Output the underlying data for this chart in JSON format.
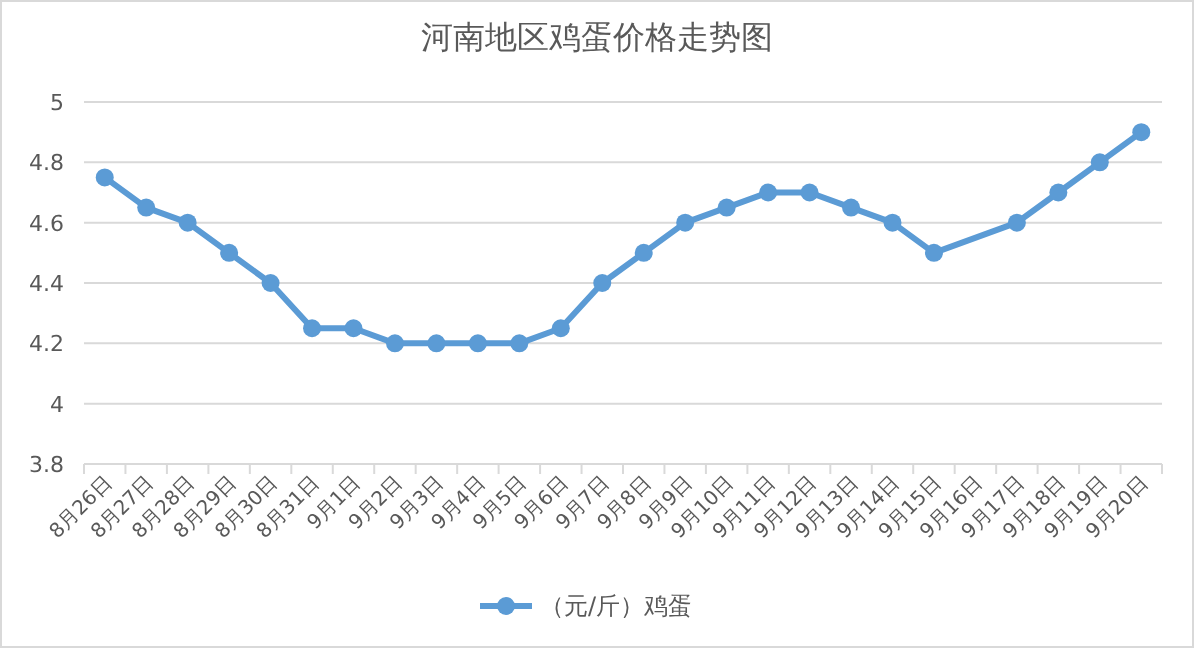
{
  "chart_data": {
    "type": "line",
    "title": "河南地区鸡蛋价格走势图",
    "categories": [
      "8月26日",
      "8月27日",
      "8月28日",
      "8月29日",
      "8月30日",
      "8月31日",
      "9月1日",
      "9月2日",
      "9月3日",
      "9月4日",
      "9月5日",
      "9月6日",
      "9月7日",
      "9月8日",
      "9月9日",
      "9月10日",
      "9月11日",
      "9月12日",
      "9月13日",
      "9月14日",
      "9月15日",
      "9月16日",
      "9月17日",
      "9月18日",
      "9月19日",
      "9月20日"
    ],
    "series": [
      {
        "name": "（元/斤）鸡蛋",
        "color": "#5b9bd5",
        "values": [
          4.75,
          4.65,
          4.6,
          4.5,
          4.4,
          4.25,
          4.25,
          4.2,
          4.2,
          4.2,
          4.2,
          4.25,
          4.4,
          4.5,
          4.6,
          4.65,
          4.7,
          4.7,
          4.65,
          4.6,
          4.5,
          null,
          4.6,
          4.7,
          4.8,
          4.9
        ]
      }
    ],
    "ylim": [
      3.8,
      5
    ],
    "yticks": [
      3.8,
      4,
      4.2,
      4.4,
      4.6,
      4.8,
      5
    ],
    "grid": "y",
    "legend": "bottom",
    "marker": "circle",
    "line_style": "solid"
  }
}
